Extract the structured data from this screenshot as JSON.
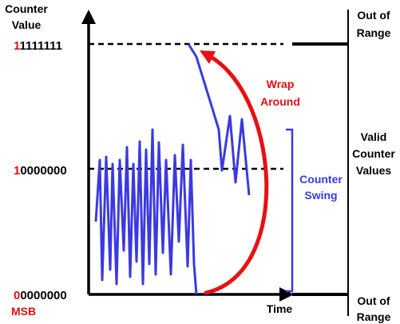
{
  "axis": {
    "y_label_line1": "Counter",
    "y_label_line2": "Value",
    "x_label": "Time",
    "msb_label": "MSB"
  },
  "levels": [
    {
      "msb": "1",
      "rest": "1111111"
    },
    {
      "msb": "1",
      "rest": "0000000"
    },
    {
      "msb": "0",
      "rest": "0000000"
    }
  ],
  "right_labels": {
    "top": [
      "Out of",
      "Range"
    ],
    "middle": [
      "Valid",
      "Counter",
      "Values"
    ],
    "bottom": [
      "Out of",
      "Range"
    ]
  },
  "annotations": {
    "wrap": [
      "Wrap",
      "Around"
    ],
    "swing": [
      "Counter",
      "Swing"
    ]
  },
  "colors": {
    "msb": "#e01010",
    "wrap_arrow": "#e81010",
    "signal": "#3a3ae0",
    "swing_label": "#3a3ae0",
    "axis": "#000000"
  }
}
